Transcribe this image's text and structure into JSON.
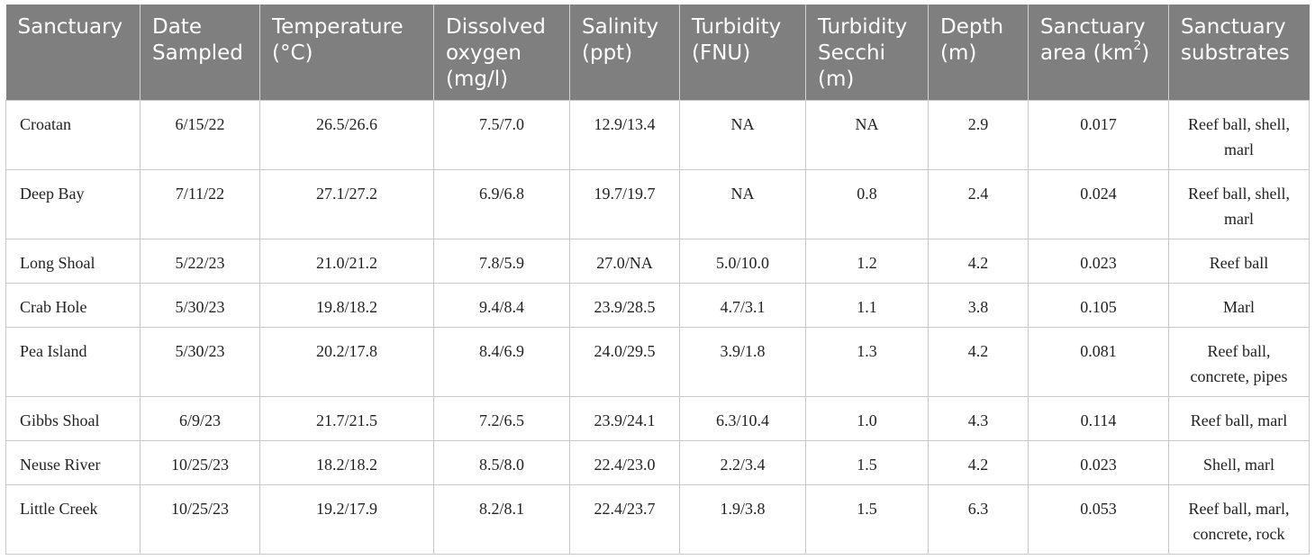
{
  "table": {
    "headers": [
      {
        "text": "Sanctuary"
      },
      {
        "text": "Date Sampled"
      },
      {
        "text": "Temperature (°C)"
      },
      {
        "text": "Dissolved oxygen (mg/l)"
      },
      {
        "text": "Salinity (ppt)"
      },
      {
        "text": "Turbidity (FNU)"
      },
      {
        "text": "Turbidity Secchi (m)"
      },
      {
        "text": "Depth (m)"
      },
      {
        "text": "Sanctuary area (km",
        "sup": "2",
        "after": ")"
      },
      {
        "text": "Sanctuary substrates"
      }
    ],
    "rows": [
      {
        "cells": [
          "Croatan",
          "6/15/22",
          "26.5/26.6",
          "7.5/7.0",
          "12.9/13.4",
          "NA",
          "NA",
          "2.9",
          "0.017",
          "Reef ball, shell, marl"
        ]
      },
      {
        "cells": [
          "Deep Bay",
          "7/11/22",
          "27.1/27.2",
          "6.9/6.8",
          "19.7/19.7",
          "NA",
          "0.8",
          "2.4",
          "0.024",
          "Reef ball, shell, marl"
        ]
      },
      {
        "cells": [
          "Long Shoal",
          "5/22/23",
          "21.0/21.2",
          "7.8/5.9",
          "27.0/NA",
          "5.0/10.0",
          "1.2",
          "4.2",
          "0.023",
          "Reef ball"
        ]
      },
      {
        "cells": [
          "Crab Hole",
          "5/30/23",
          "19.8/18.2",
          "9.4/8.4",
          "23.9/28.5",
          "4.7/3.1",
          "1.1",
          "3.8",
          "0.105",
          "Marl"
        ]
      },
      {
        "cells": [
          "Pea Island",
          "5/30/23",
          "20.2/17.8",
          "8.4/6.9",
          "24.0/29.5",
          "3.9/1.8",
          "1.3",
          "4.2",
          "0.081",
          "Reef ball, concrete, pipes"
        ]
      },
      {
        "cells": [
          "Gibbs Shoal",
          "6/9/23",
          "21.7/21.5",
          "7.2/6.5",
          "23.9/24.1",
          "6.3/10.4",
          "1.0",
          "4.3",
          "0.114",
          "Reef ball, marl"
        ]
      },
      {
        "cells": [
          "Neuse River",
          "10/25/23",
          "18.2/18.2",
          "8.5/8.0",
          "22.4/23.0",
          "2.2/3.4",
          "1.5",
          "4.2",
          "0.023",
          "Shell, marl"
        ]
      },
      {
        "cells": [
          "Little Creek",
          "10/25/23",
          "19.2/17.9",
          "8.2/8.1",
          "22.4/23.7",
          "1.9/3.8",
          "1.5",
          "6.3",
          "0.053",
          "Reef ball, marl, concrete, rock"
        ]
      }
    ]
  }
}
